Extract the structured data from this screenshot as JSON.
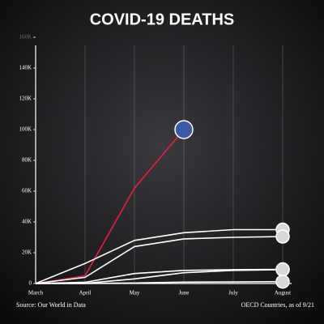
{
  "chart_data": {
    "type": "line",
    "title": "COVID-19 DEATHS",
    "categories": [
      "March",
      "April",
      "May",
      "June",
      "July",
      "August"
    ],
    "series": [
      {
        "color": "#e3203b",
        "values": [
          0,
          5000,
          62000,
          100000,
          null,
          null
        ]
      },
      {
        "color": "#ffffff",
        "values": [
          0,
          13000,
          28000,
          33000,
          35000,
          35000
        ]
      },
      {
        "color": "#ffffff",
        "values": [
          0,
          4000,
          24000,
          29000,
          30000,
          30500
        ]
      },
      {
        "color": "#ffffff",
        "values": [
          0,
          100,
          3000,
          7000,
          8500,
          9000
        ]
      },
      {
        "color": "#ffffff",
        "values": [
          0,
          800,
          6500,
          8500,
          9000,
          9200
        ]
      },
      {
        "color": "#ffffff",
        "values": [
          0,
          10,
          400,
          900,
          1000,
          1200
        ]
      }
    ],
    "ylim": [
      0,
      160000
    ],
    "yticks": [
      0,
      {
        "value": 20000,
        "label": "20K"
      },
      {
        "value": 40000,
        "label": "40K"
      },
      {
        "value": 60000,
        "label": "60K"
      },
      {
        "value": 80000,
        "label": "80K"
      },
      {
        "value": 100000,
        "label": "100K"
      },
      {
        "value": 120000,
        "label": "120K"
      },
      {
        "value": 140000,
        "label": "140K"
      },
      {
        "value": 160000,
        "label": "160K"
      }
    ],
    "grid": true,
    "source": "Source:  Our World in Data",
    "note": "OECD Countries, as of 9/21"
  }
}
